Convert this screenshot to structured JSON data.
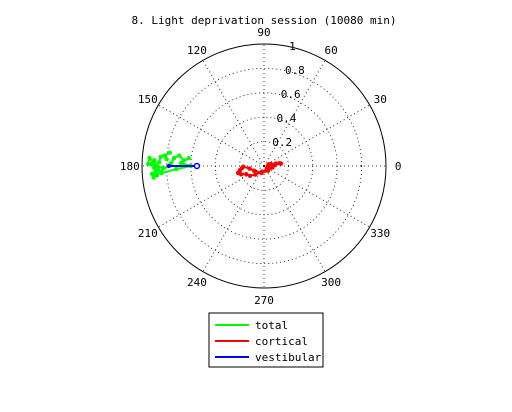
{
  "chart_data": {
    "type": "polar",
    "title": "8. Light deprivation session (10080 min)",
    "angle_ticks": [
      "0",
      "30",
      "60",
      "90",
      "120",
      "150",
      "180",
      "210",
      "240",
      "270",
      "300",
      "330"
    ],
    "radial_ticks": [
      "0.2",
      "0.4",
      "0.6",
      "0.8",
      "1"
    ],
    "rlim": [
      0,
      1
    ],
    "grid": true,
    "legend_position": "bottom",
    "series": [
      {
        "name": "total",
        "color": "#00ff00",
        "points": [
          [
            176,
            0.8
          ],
          [
            174,
            0.82
          ],
          [
            172,
            0.78
          ],
          [
            175,
            0.85
          ],
          [
            178,
            0.86
          ],
          [
            180,
            0.88
          ],
          [
            182,
            0.87
          ],
          [
            177,
            0.9
          ],
          [
            179,
            0.92
          ],
          [
            181,
            0.9
          ],
          [
            183,
            0.89
          ],
          [
            185,
            0.88
          ],
          [
            184,
            0.92
          ],
          [
            186,
            0.91
          ],
          [
            178,
            0.76
          ],
          [
            175,
            0.74
          ],
          [
            173,
            0.7
          ],
          [
            176,
            0.66
          ],
          [
            174,
            0.62
          ],
          [
            178,
            0.68
          ],
          [
            180,
            0.6
          ],
          [
            182,
            0.72
          ],
          [
            184,
            0.84
          ],
          [
            176,
            0.94
          ],
          [
            179,
            0.95
          ],
          [
            181,
            0.83
          ]
        ]
      },
      {
        "name": "cortical",
        "color": "#ff0000",
        "points": [
          [
            8,
            0.14
          ],
          [
            12,
            0.1
          ],
          [
            15,
            0.06
          ],
          [
            20,
            0.04
          ],
          [
            355,
            0.03
          ],
          [
            340,
            0.04
          ],
          [
            330,
            0.03
          ],
          [
            300,
            0.04
          ],
          [
            250,
            0.05
          ],
          [
            225,
            0.1
          ],
          [
            215,
            0.14
          ],
          [
            205,
            0.16
          ],
          [
            200,
            0.2
          ],
          [
            195,
            0.22
          ],
          [
            190,
            0.2
          ],
          [
            185,
            0.18
          ],
          [
            182,
            0.17
          ],
          [
            190,
            0.12
          ],
          [
            205,
            0.09
          ],
          [
            250,
            0.06
          ],
          [
            310,
            0.05
          ],
          [
            350,
            0.07
          ],
          [
            5,
            0.09
          ],
          [
            10,
            0.13
          ]
        ]
      },
      {
        "name": "vestibular",
        "color": "#0000ff",
        "points": [
          [
            180,
            0.55
          ],
          [
            180,
            0.78
          ]
        ]
      }
    ]
  }
}
